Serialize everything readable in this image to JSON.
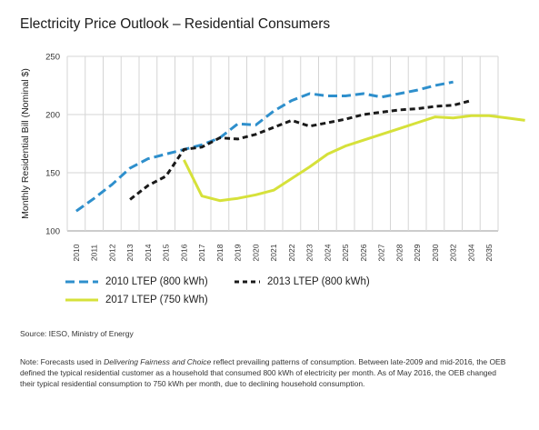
{
  "title": "Electricity Price Outlook – Residential Consumers",
  "chart_data": {
    "type": "line",
    "title": "Electricity Price Outlook – Residential Consumers",
    "xlabel": "",
    "ylabel": "Monthly Residential Bill (Nominal $)",
    "ylim": [
      100,
      250
    ],
    "yticks": [
      "100",
      "150",
      "200",
      "250"
    ],
    "xticks": [
      "2010",
      "2011",
      "2012",
      "2013",
      "2014",
      "2015",
      "2016",
      "2017",
      "2018",
      "2019",
      "2020",
      "2021",
      "2022",
      "2023",
      "2024",
      "2025",
      "2026",
      "2027",
      "2028",
      "2029",
      "2030",
      "2032",
      "2034",
      "2035"
    ],
    "grid": true,
    "legend_position": "bottom",
    "series": [
      {
        "name": "2010 LTEP (800 kWh)",
        "color": "#2e8fcc",
        "style": "dashed",
        "points": [
          [
            0,
            117
          ],
          [
            1,
            128
          ],
          [
            2,
            140
          ],
          [
            3,
            154
          ],
          [
            4,
            162
          ],
          [
            5,
            166
          ],
          [
            6,
            170
          ],
          [
            7,
            174
          ],
          [
            8,
            180
          ],
          [
            9,
            192
          ],
          [
            10,
            191
          ],
          [
            11,
            203
          ],
          [
            12,
            212
          ],
          [
            13,
            218
          ],
          [
            14,
            216
          ],
          [
            15,
            216
          ],
          [
            16,
            218
          ],
          [
            17,
            215
          ],
          [
            18,
            218
          ],
          [
            19,
            221
          ],
          [
            20,
            225
          ],
          [
            21,
            228
          ]
        ]
      },
      {
        "name": "2013 LTEP (800 kWh)",
        "color": "#1a1a1a",
        "style": "dashed",
        "points": [
          [
            3,
            127
          ],
          [
            4,
            139
          ],
          [
            5,
            147
          ],
          [
            6,
            170
          ],
          [
            7,
            172
          ],
          [
            8,
            180
          ],
          [
            9,
            179
          ],
          [
            10,
            183
          ],
          [
            11,
            189
          ],
          [
            12,
            195
          ],
          [
            13,
            190
          ],
          [
            14,
            193
          ],
          [
            15,
            196
          ],
          [
            16,
            200
          ],
          [
            17,
            202
          ],
          [
            18,
            204
          ],
          [
            19,
            205
          ],
          [
            20,
            207
          ],
          [
            21,
            208
          ],
          [
            22,
            212
          ]
        ]
      },
      {
        "name": "2017 LTEP (750 kWh)",
        "color": "#d6e13a",
        "style": "solid",
        "points": [
          [
            6,
            161
          ],
          [
            7,
            130
          ],
          [
            8,
            126
          ],
          [
            9,
            128
          ],
          [
            10,
            131
          ],
          [
            11,
            135
          ],
          [
            12,
            145
          ],
          [
            13,
            155
          ],
          [
            14,
            166
          ],
          [
            15,
            173
          ],
          [
            16,
            178
          ],
          [
            17,
            183
          ],
          [
            18,
            188
          ],
          [
            19,
            193
          ],
          [
            20,
            198
          ],
          [
            21,
            197
          ],
          [
            22,
            199
          ],
          [
            23,
            199
          ],
          [
            24,
            197
          ],
          [
            25,
            195
          ]
        ]
      }
    ]
  },
  "source": "Source: IESO, Ministry of Energy",
  "note": {
    "prefix": "Note: Forecasts used in ",
    "italic": "Delivering Fairness and Choice",
    "suffix": " reflect prevailing patterns of consumption. Between late-2009 and mid-2016, the OEB defined the typical residential customer as a household that consumed 800 kWh of electricity per month. As of May 2016, the OEB changed their typical residential consumption to 750 kWh per month, due to declining household consumption."
  }
}
